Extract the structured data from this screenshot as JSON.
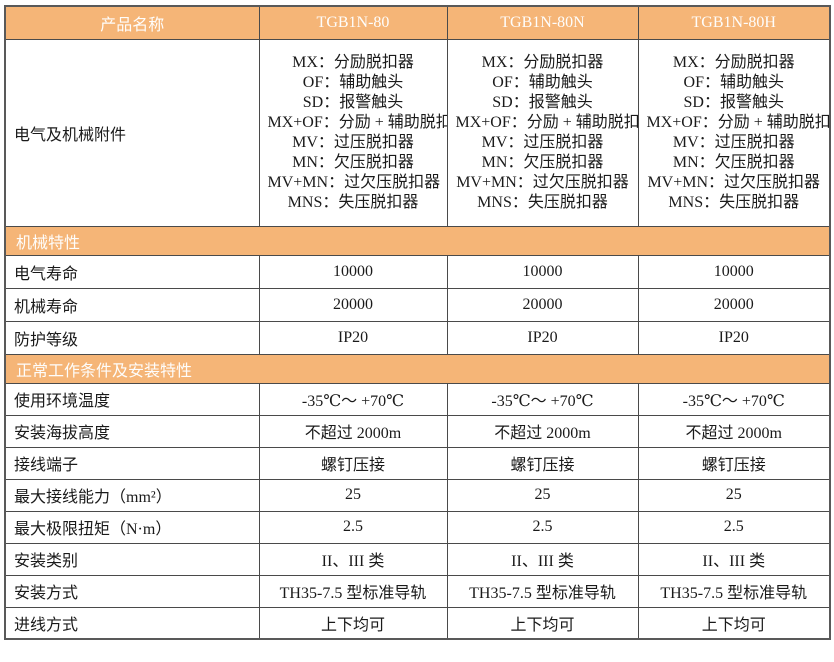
{
  "table": {
    "header": {
      "product_name_label": "产品名称",
      "products": [
        "TGB1N-80",
        "TGB1N-80N",
        "TGB1N-80H"
      ]
    },
    "accessories": {
      "label": "电气及机械附件",
      "lines": [
        "MX：分励脱扣器",
        "OF：辅助触头",
        "SD：报警触头",
        "MX+OF：分励 + 辅助脱扣器",
        "MV：过压脱扣器",
        "MN：欠压脱扣器",
        "MV+MN：过欠压脱扣器",
        "MNS：失压脱扣器"
      ]
    },
    "sections": [
      {
        "title": "机械特性",
        "rows": [
          {
            "label": "电气寿命",
            "values": [
              "10000",
              "10000",
              "10000"
            ]
          },
          {
            "label": "机械寿命",
            "values": [
              "20000",
              "20000",
              "20000"
            ]
          },
          {
            "label": "防护等级",
            "values": [
              "IP20",
              "IP20",
              "IP20"
            ]
          }
        ]
      },
      {
        "title": "正常工作条件及安装特性",
        "rows": [
          {
            "label": "使用环境温度",
            "values": [
              "-35℃～ +70℃",
              "-35℃～ +70℃",
              "-35℃～ +70℃"
            ]
          },
          {
            "label": "安装海拔高度",
            "values": [
              "不超过 2000m",
              "不超过 2000m",
              "不超过 2000m"
            ]
          },
          {
            "label": "接线端子",
            "values": [
              "螺钉压接",
              "螺钉压接",
              "螺钉压接"
            ]
          },
          {
            "label": "最大接线能力（mm²）",
            "values": [
              "25",
              "25",
              "25"
            ]
          },
          {
            "label": "最大极限扭矩（N·m）",
            "values": [
              "2.5",
              "2.5",
              "2.5"
            ]
          },
          {
            "label": "安装类别",
            "values": [
              "II、III 类",
              "II、III 类",
              "II、III 类"
            ]
          },
          {
            "label": "安装方式",
            "values": [
              "TH35-7.5 型标准导轨",
              "TH35-7.5 型标准导轨",
              "TH35-7.5 型标准导轨"
            ]
          },
          {
            "label": "进线方式",
            "values": [
              "上下均可",
              "上下均可",
              "上下均可"
            ]
          }
        ]
      }
    ],
    "colors": {
      "header_bg": "#F5B577",
      "header_text": "#FEFDFB",
      "outer_border": "#595959",
      "inner_border": "#4A4A4A"
    }
  }
}
